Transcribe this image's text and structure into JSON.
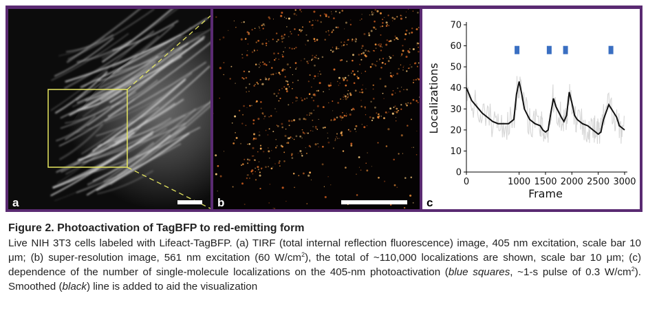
{
  "figure": {
    "panel_a": {
      "label": "a"
    },
    "panel_b": {
      "label": "b"
    },
    "panel_c": {
      "label": "c"
    }
  },
  "chart_data": {
    "type": "line",
    "xlabel": "Frame",
    "ylabel": "Localizations",
    "xlim": [
      0,
      3000
    ],
    "ylim": [
      0,
      70
    ],
    "x_ticks": [
      0,
      1000,
      1500,
      2000,
      2500,
      3000
    ],
    "y_ticks": [
      0,
      10,
      20,
      30,
      40,
      50,
      60,
      70
    ],
    "grid": false,
    "series": [
      {
        "color": "#111111",
        "x": [
          0,
          100,
          200,
          300,
          400,
          500,
          600,
          700,
          800,
          900,
          950,
          1000,
          1050,
          1100,
          1200,
          1300,
          1400,
          1450,
          1500,
          1550,
          1600,
          1650,
          1700,
          1800,
          1850,
          1900,
          1950,
          2000,
          2050,
          2100,
          2200,
          2300,
          2350,
          2400,
          2450,
          2500,
          2550,
          2600,
          2700,
          2800,
          2850,
          2900,
          2950,
          3000
        ],
        "y": [
          40,
          34,
          31,
          28,
          26,
          24,
          23,
          23,
          23,
          25,
          37,
          43,
          37,
          30,
          25,
          23,
          22,
          20,
          19,
          20,
          28,
          35,
          31,
          26,
          24,
          27,
          38,
          33,
          27,
          25,
          23,
          22,
          21,
          20,
          19,
          18,
          19,
          25,
          32,
          28,
          26,
          22,
          21,
          20
        ]
      }
    ],
    "pulse_markers": {
      "color": "#3a6fc2",
      "x": [
        960,
        1570,
        1880,
        2740
      ],
      "y": 58
    }
  },
  "caption": {
    "title": "Figure 2. Photoactivation of TagBFP to red-emitting form",
    "body_1": "Live NIH 3T3 cells labeled with Lifeact-TagBFP. (a) TIRF (total internal reflection fluorescence) image, 405 nm excitation, scale bar 10 μm; (b) super-resolution image, 561 nm excitation (60 W/cm",
    "sup_1": "2",
    "body_2": "), the total of ~110,000 localizations are shown, scale bar 10 μm; (c) dependence of the number of single-molecule localizations on the 405-nm photoactivation (",
    "em_1": "blue squares",
    "body_3": ", ~1-s pulse of 0.3 W/cm",
    "sup_2": "2",
    "body_4": "). Smoothed (",
    "em_2": "black",
    "body_5": ") line is added to aid the visualization"
  }
}
